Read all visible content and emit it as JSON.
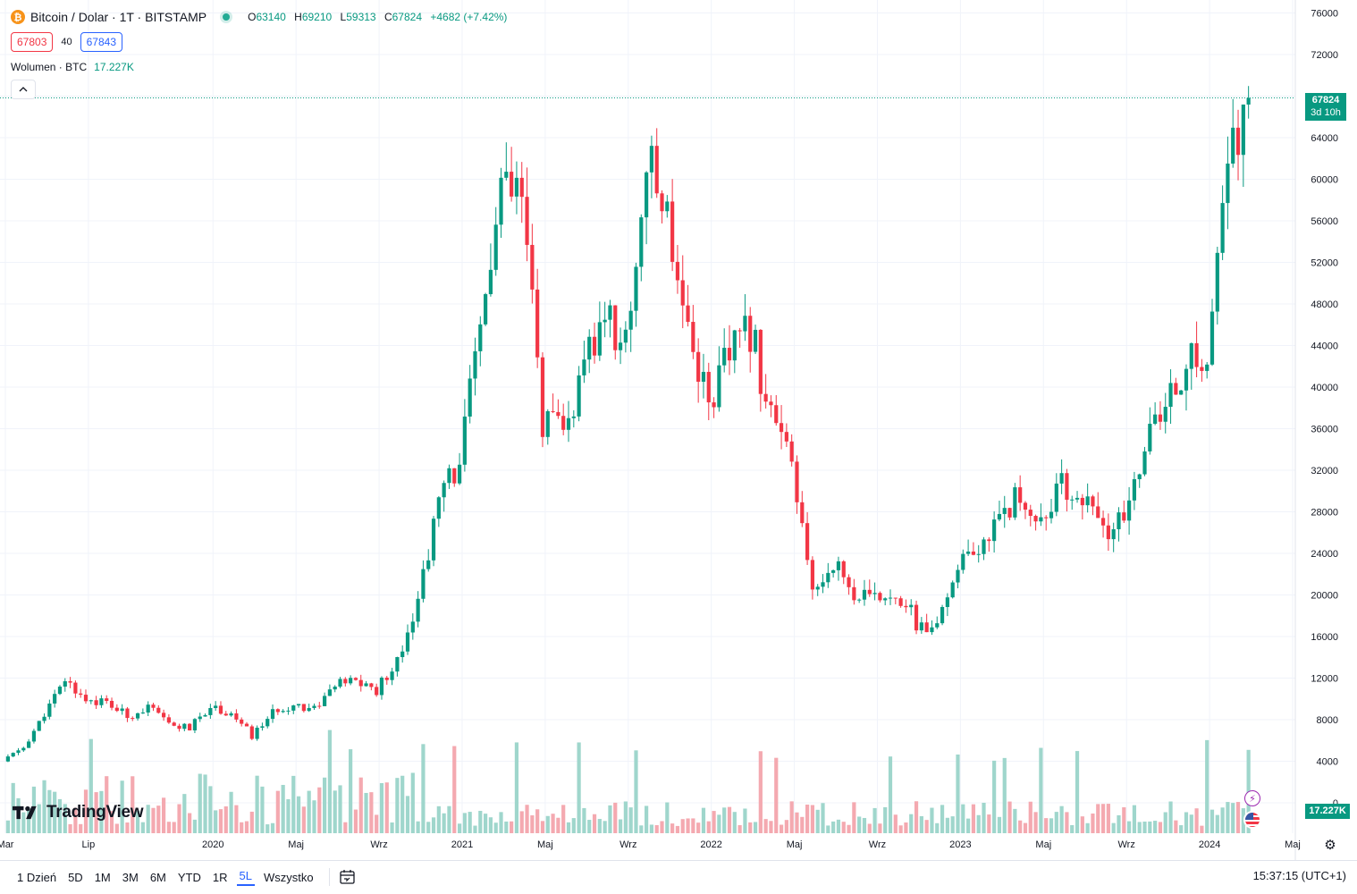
{
  "header": {
    "symbol": "Bitcoin / Dolar · 1T · BITSTAMP",
    "btc_glyph": "₿",
    "ohlc": {
      "o_label": "O",
      "o": "63140",
      "h_label": "H",
      "h": "69210",
      "l_label": "L",
      "l": "59313",
      "c_label": "C",
      "c": "67824",
      "change": "+4682 (+7.42%)"
    },
    "sell_price": "67803",
    "spread": "40",
    "buy_price": "67843",
    "volume_label": "Wolumen · BTC",
    "volume_value": "17.227K",
    "collapse_glyph": "^"
  },
  "price_label": {
    "price": "67824",
    "countdown": "3d 10h"
  },
  "volume_axis_label": "17.227K",
  "brand": "TradingView",
  "icons": {
    "flash": "flash-icon",
    "flag": "us-flag-icon",
    "settings": "gear-icon",
    "calendar": "calendar-goto-icon"
  },
  "colors": {
    "up": "#089981",
    "down": "#f23645",
    "vol_up": "#9fd6cc",
    "vol_down": "#f4a9b0",
    "accent": "#2962ff"
  },
  "bottom_bar": {
    "ranges": [
      "1 Dzień",
      "5D",
      "1M",
      "3M",
      "6M",
      "YTD",
      "1R",
      "5L",
      "Wszystko"
    ],
    "active": "5L",
    "clock": "15:37:15 (UTC+1)"
  },
  "chart_data": {
    "type": "candlestick",
    "interval": "1 week",
    "ylim": [
      0,
      76000
    ],
    "y_ticks": [
      "76000",
      "72000",
      "68000",
      "64000",
      "60000",
      "56000",
      "52000",
      "48000",
      "44000",
      "40000",
      "36000",
      "32000",
      "28000",
      "24000",
      "20000",
      "16000",
      "12000",
      "8000",
      "4000",
      "0"
    ],
    "x_ticks": [
      {
        "label": "Mar",
        "x": "2019-03"
      },
      {
        "label": "Lip",
        "x": "2019-07"
      },
      {
        "label": "2020",
        "x": "2020-01"
      },
      {
        "label": "Maj",
        "x": "2020-05"
      },
      {
        "label": "Wrz",
        "x": "2020-09"
      },
      {
        "label": "2021",
        "x": "2021-01"
      },
      {
        "label": "Maj",
        "x": "2021-05"
      },
      {
        "label": "Wrz",
        "x": "2021-09"
      },
      {
        "label": "2022",
        "x": "2022-01"
      },
      {
        "label": "Maj",
        "x": "2022-05"
      },
      {
        "label": "Wrz",
        "x": "2022-09"
      },
      {
        "label": "2023",
        "x": "2023-01"
      },
      {
        "label": "Maj",
        "x": "2023-05"
      },
      {
        "label": "Wrz",
        "x": "2023-09"
      },
      {
        "label": "2024",
        "x": "2024-01"
      },
      {
        "label": "Maj",
        "x": "2024-05"
      }
    ],
    "last_price_line": 67824,
    "close_series": [
      {
        "date": "2019-03",
        "close": 4100
      },
      {
        "date": "2019-04",
        "close": 5300
      },
      {
        "date": "2019-05",
        "close": 8500
      },
      {
        "date": "2019-06",
        "close": 11800
      },
      {
        "date": "2019-07",
        "close": 10000
      },
      {
        "date": "2019-08",
        "close": 9600
      },
      {
        "date": "2019-09",
        "close": 8300
      },
      {
        "date": "2019-10",
        "close": 9200
      },
      {
        "date": "2019-11",
        "close": 7500
      },
      {
        "date": "2019-12",
        "close": 7200
      },
      {
        "date": "2020-01",
        "close": 9300
      },
      {
        "date": "2020-02",
        "close": 8600
      },
      {
        "date": "2020-03",
        "close": 6400
      },
      {
        "date": "2020-04",
        "close": 8700
      },
      {
        "date": "2020-05",
        "close": 9500
      },
      {
        "date": "2020-06",
        "close": 9100
      },
      {
        "date": "2020-07",
        "close": 11300
      },
      {
        "date": "2020-08",
        "close": 11700
      },
      {
        "date": "2020-09",
        "close": 10800
      },
      {
        "date": "2020-10",
        "close": 13800
      },
      {
        "date": "2020-11",
        "close": 19500
      },
      {
        "date": "2020-12",
        "close": 29000
      },
      {
        "date": "2021-01",
        "close": 33000
      },
      {
        "date": "2021-02",
        "close": 45500
      },
      {
        "date": "2021-03",
        "close": 58800
      },
      {
        "date": "2021-04",
        "close": 57700
      },
      {
        "date": "2021-05",
        "close": 37300
      },
      {
        "date": "2021-06",
        "close": 35000
      },
      {
        "date": "2021-07",
        "close": 41500
      },
      {
        "date": "2021-08",
        "close": 47100
      },
      {
        "date": "2021-09",
        "close": 43800
      },
      {
        "date": "2021-10",
        "close": 61300
      },
      {
        "date": "2021-11",
        "close": 57000
      },
      {
        "date": "2021-12",
        "close": 46200
      },
      {
        "date": "2022-01",
        "close": 38500
      },
      {
        "date": "2022-02",
        "close": 43200
      },
      {
        "date": "2022-03",
        "close": 45500
      },
      {
        "date": "2022-04",
        "close": 37700
      },
      {
        "date": "2022-05",
        "close": 31800
      },
      {
        "date": "2022-06",
        "close": 19900
      },
      {
        "date": "2022-07",
        "close": 23300
      },
      {
        "date": "2022-08",
        "close": 20000
      },
      {
        "date": "2022-09",
        "close": 19400
      },
      {
        "date": "2022-10",
        "close": 20500
      },
      {
        "date": "2022-11",
        "close": 17200
      },
      {
        "date": "2022-12",
        "close": 16500
      },
      {
        "date": "2023-01",
        "close": 23100
      },
      {
        "date": "2023-02",
        "close": 23100
      },
      {
        "date": "2023-03",
        "close": 28500
      },
      {
        "date": "2023-04",
        "close": 29200
      },
      {
        "date": "2023-05",
        "close": 27200
      },
      {
        "date": "2023-06",
        "close": 30500
      },
      {
        "date": "2023-07",
        "close": 29200
      },
      {
        "date": "2023-08",
        "close": 26000
      },
      {
        "date": "2023-09",
        "close": 27000
      },
      {
        "date": "2023-10",
        "close": 34600
      },
      {
        "date": "2023-11",
        "close": 37700
      },
      {
        "date": "2023-12",
        "close": 42300
      },
      {
        "date": "2024-01",
        "close": 42600
      },
      {
        "date": "2024-02",
        "close": 61200
      },
      {
        "date": "2024-03",
        "close": 67824
      }
    ]
  }
}
